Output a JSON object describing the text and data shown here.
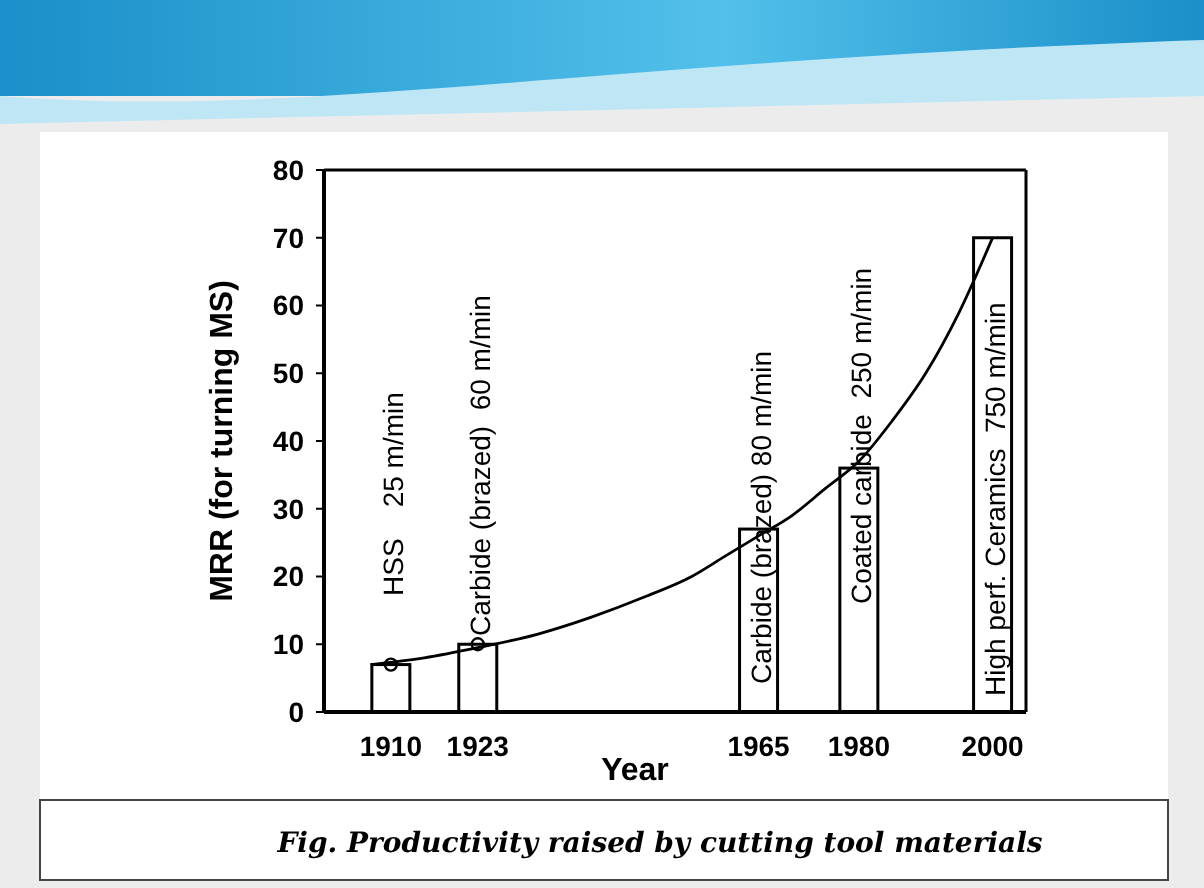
{
  "chart_data": {
    "type": "bar",
    "xlabel": "Year",
    "ylabel": "MRR (for turning MS)",
    "xlim": [
      1900,
      2005
    ],
    "ylim": [
      0,
      80
    ],
    "xticks": [
      1910,
      1923,
      1965,
      1980,
      2000
    ],
    "yticks": [
      0,
      10,
      20,
      30,
      40,
      50,
      60,
      70,
      80
    ],
    "grid": false,
    "series": [
      {
        "color": "#ffffff",
        "x": [
          1910,
          1923,
          1965,
          1980,
          2000
        ],
        "values": [
          7,
          10,
          27,
          36,
          70
        ]
      },
      {
        "type": "line",
        "color": "#000000",
        "line_style": "solid",
        "marker": "none",
        "x": [
          1907,
          1915,
          1923,
          1932,
          1940,
          1948,
          1955,
          1960,
          1965,
          1970,
          1975,
          1980,
          1985,
          1990,
          1995,
          2000
        ],
        "values": [
          7,
          8,
          9.5,
          11.5,
          14,
          17,
          20,
          23,
          26,
          29,
          33,
          37,
          43,
          50,
          59,
          70
        ]
      },
      {
        "type": "scatter",
        "color": "#000000",
        "marker": "circle",
        "x": [
          1910,
          1923
        ],
        "values": [
          7,
          10
        ]
      }
    ],
    "annotations": [
      "HSS    25 m/min",
      "Carbide (brazed)  60 m/min",
      "Carbide (brazed) 80 m/min",
      "Coated carbide  250 m/min",
      "High perf. Ceramics  750 m/min",
      "Fig. Productivity raised by cutting tool materials"
    ]
  }
}
